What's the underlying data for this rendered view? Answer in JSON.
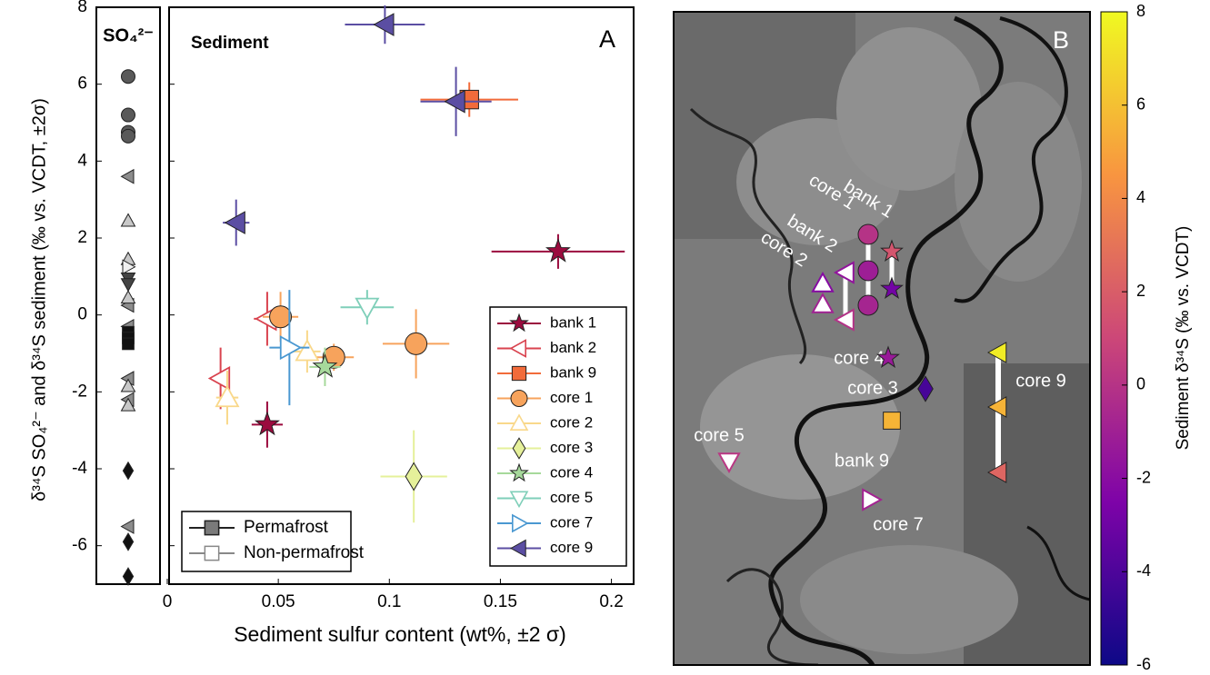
{
  "chart_data": [
    {
      "type": "strip",
      "title": "SO₄²⁻",
      "ylabel": "δ³⁴S SO₄²⁻ and δ³⁴S sediment (‰ vs. VCDT, ±2σ)",
      "ylim": [
        -7,
        8
      ],
      "yticks": [
        -6,
        -4,
        -2,
        0,
        2,
        4,
        6,
        8
      ],
      "series": [
        {
          "marker": "circle",
          "color": "#595959",
          "values": [
            6.2,
            5.2,
            4.75,
            4.65
          ]
        },
        {
          "marker": "left",
          "color": "#8c8c8c",
          "values": [
            3.6,
            0.25,
            -0.3,
            -1.65,
            -2.2,
            -5.5
          ]
        },
        {
          "marker": "up",
          "color": "#c8c8c8",
          "values": [
            2.45,
            1.45,
            0.45,
            -1.85,
            -2.35
          ]
        },
        {
          "marker": "right",
          "color": "#f0f0f0",
          "values": [
            1.25
          ]
        },
        {
          "marker": "down",
          "color": "#444444",
          "values": [
            0.95,
            0.8
          ]
        },
        {
          "marker": "square",
          "color": "#111111",
          "values": [
            -0.45,
            -0.6,
            -0.75
          ]
        },
        {
          "marker": "diamond",
          "color": "#111111",
          "values": [
            -4.05,
            -5.9,
            -6.8
          ]
        }
      ]
    },
    {
      "type": "scatter",
      "panel_label": "A",
      "annotation": "Sediment",
      "xlabel": "Sediment sulfur content (wt%, ±2 σ)",
      "xlim": [
        0,
        0.21
      ],
      "xticks": [
        0,
        0.05,
        0.1,
        0.15,
        0.2
      ],
      "ylim": [
        -7,
        8
      ],
      "yticks": [
        -6,
        -4,
        -2,
        0,
        2,
        4,
        6,
        8
      ],
      "legend": "lower right",
      "series": [
        {
          "name": "bank 1",
          "color": "#9b0b3e",
          "marker": "star",
          "filled": true,
          "x": [
            0.176,
            0.045
          ],
          "values": [
            1.65,
            -2.85
          ],
          "xerr": [
            0.03,
            0.007
          ],
          "yerr": [
            0.45,
            0.6
          ]
        },
        {
          "name": "bank 2",
          "color": "#d9434f",
          "marker": "left",
          "filled": false,
          "x": [
            0.024,
            0.045
          ],
          "values": [
            -1.65,
            -0.1
          ],
          "xerr": [
            0.004,
            0.006
          ],
          "yerr": [
            0.8,
            0.7
          ]
        },
        {
          "name": "bank 9",
          "color": "#f26b3a",
          "marker": "square",
          "filled": true,
          "x": [
            0.136
          ],
          "values": [
            5.6
          ],
          "xerr": [
            0.022
          ],
          "yerr": [
            0.45
          ]
        },
        {
          "name": "core 1",
          "color": "#f7a35c",
          "marker": "circle",
          "filled": true,
          "x": [
            0.051,
            0.075,
            0.112
          ],
          "values": [
            -0.05,
            -1.1,
            -0.75
          ],
          "xerr": [
            0.008,
            0.009,
            0.015
          ],
          "yerr": [
            0.65,
            0.35,
            0.9
          ]
        },
        {
          "name": "core 2",
          "color": "#f9d88a",
          "marker": "up",
          "filled": false,
          "x": [
            0.027,
            0.063
          ],
          "values": [
            -2.15,
            -0.95
          ],
          "xerr": [
            0.005,
            0.006
          ],
          "yerr": [
            0.7,
            0.55
          ]
        },
        {
          "name": "core 3",
          "color": "#e5f09a",
          "marker": "diamond",
          "filled": true,
          "x": [
            0.111
          ],
          "values": [
            -4.2
          ],
          "xerr": [
            0.015
          ],
          "yerr": [
            1.2
          ]
        },
        {
          "name": "core 4",
          "color": "#a6d99b",
          "marker": "star",
          "filled": true,
          "x": [
            0.071
          ],
          "values": [
            -1.35
          ],
          "xerr": [
            0.007
          ],
          "yerr": [
            0.5
          ]
        },
        {
          "name": "core 5",
          "color": "#7fcfb9",
          "marker": "down",
          "filled": false,
          "x": [
            0.09
          ],
          "values": [
            0.2
          ],
          "xerr": [
            0.012
          ],
          "yerr": [
            0.45
          ]
        },
        {
          "name": "core 7",
          "color": "#4a98d1",
          "marker": "right",
          "filled": false,
          "x": [
            0.055
          ],
          "values": [
            -0.85
          ],
          "xerr": [
            0.009
          ],
          "yerr": [
            1.5
          ]
        },
        {
          "name": "core 9",
          "color": "#5b4ea3",
          "marker": "left",
          "filled": true,
          "x": [
            0.098,
            0.13,
            0.031
          ],
          "values": [
            7.55,
            5.55,
            2.4
          ],
          "xerr": [
            0.018,
            0.016,
            0.006
          ],
          "yerr": [
            0.5,
            0.9,
            0.6
          ]
        }
      ],
      "legend2": {
        "corner": "lower left",
        "entries": [
          {
            "name": "Permafrost",
            "filled": true
          },
          {
            "name": "Non-permafrost",
            "filled": false
          }
        ]
      }
    },
    {
      "type": "map",
      "panel_label": "B",
      "labels": [
        "bank 1",
        "core 1",
        "bank 2",
        "core 2",
        "core 4",
        "core 3",
        "core 9",
        "core 5",
        "bank 9",
        "core 7"
      ],
      "marker_values": [
        7.55,
        5.55,
        2.4,
        1.65,
        -2.85,
        -0.05,
        -1.1,
        -0.75,
        -1.65,
        -0.1,
        -2.15,
        -0.95,
        -1.35,
        -4.2,
        5.6,
        0.2,
        -0.85
      ],
      "colorbar": {
        "label": "Sediment δ³⁴S (‰ vs. VCDT)",
        "ylim": [
          -6,
          8
        ],
        "yticks": [
          -6,
          -4,
          -2,
          0,
          2,
          4,
          6,
          8
        ]
      }
    }
  ]
}
